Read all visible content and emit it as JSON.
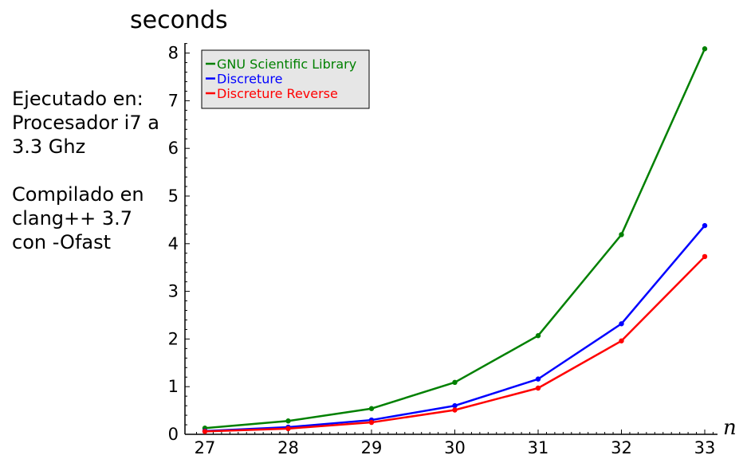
{
  "chart_data": {
    "type": "line",
    "ylabel": "seconds",
    "xlabel": "n",
    "x": [
      27,
      28,
      29,
      30,
      31,
      32,
      33
    ],
    "xlim": [
      26.85,
      33.2
    ],
    "ylim": [
      0,
      8.25
    ],
    "yticks": [
      0,
      1,
      2,
      3,
      4,
      5,
      6,
      7,
      8
    ],
    "xticks": [
      27,
      28,
      29,
      30,
      31,
      32,
      33
    ],
    "grid": false,
    "legend_position": "top-left",
    "series": [
      {
        "name": "GNU Scientific Library",
        "color": "#008000",
        "values": [
          0.13,
          0.28,
          0.54,
          1.09,
          2.07,
          4.19,
          8.09
        ]
      },
      {
        "name": "Discreture",
        "color": "#0000ff",
        "values": [
          0.07,
          0.15,
          0.3,
          0.6,
          1.16,
          2.32,
          4.38
        ]
      },
      {
        "name": "Discreture Reverse",
        "color": "#ff0000",
        "values": [
          0.06,
          0.12,
          0.25,
          0.51,
          0.97,
          1.96,
          3.73
        ]
      }
    ]
  },
  "annotation": {
    "lines": [
      "Ejecutado en:",
      "Procesador i7 a",
      "3.3 Ghz",
      "",
      "Compilado en",
      "clang++ 3.7",
      "con -Ofast"
    ]
  }
}
